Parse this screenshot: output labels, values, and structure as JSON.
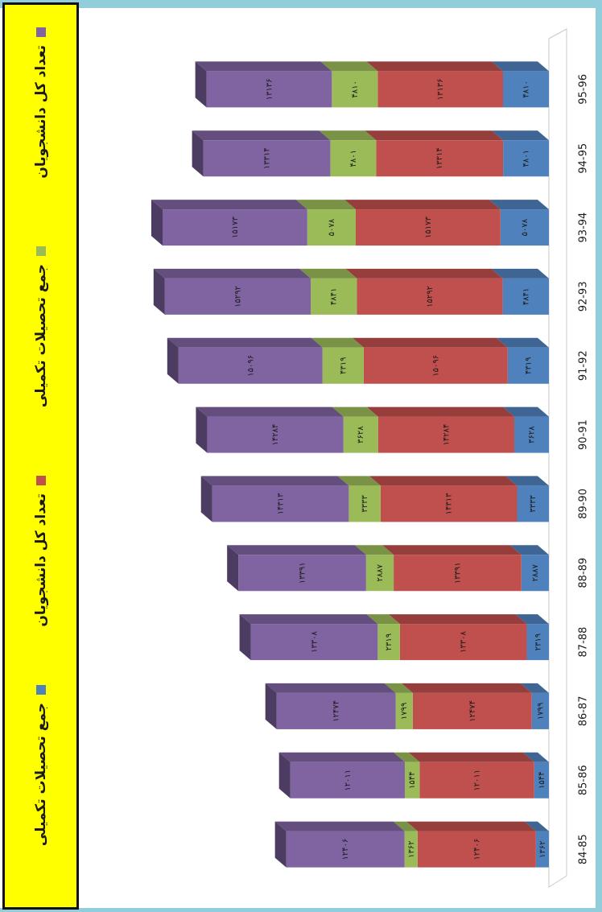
{
  "legend": {
    "items": [
      {
        "label": "جمع تحصیلات تکمیلی",
        "color": "#4f81bd"
      },
      {
        "label": "تعداد کل دانشجویان",
        "color": "#c0504d"
      },
      {
        "label": "جمع تحصیلات تکمیلی",
        "color": "#9bbb59"
      },
      {
        "label": "تعداد کل دانشجویان",
        "color": "#8064a2"
      }
    ]
  },
  "chart_data": {
    "type": "bar",
    "stacked": true,
    "three_d": true,
    "categories": [
      "84-85",
      "85-86",
      "86-87",
      "87-88",
      "88-89",
      "89-90",
      "90-91",
      "91-92",
      "92-93",
      "93-94",
      "94-95",
      "95-96"
    ],
    "series": [
      {
        "name": "جمع تحصیلات تکمیلی",
        "color": "#4f81bd",
        "values": [
          1362,
          1544,
          1799,
          2319,
          2887,
          3333,
          3628,
          4319,
          4841,
          5078,
          4801,
          4810
        ],
        "labels": [
          "۱۳۶۲",
          "۱۵۴۴",
          "۱۷۹۹",
          "۲۳۱۹",
          "۲۸۸۷",
          "۳۳۳۳",
          "۳۶۲۸",
          "۴۳۱۹",
          "۴۸۴۱",
          "۵۰۷۸",
          "۴۸۰۱",
          "۴۸۱۰"
        ]
      },
      {
        "name": "تعداد کل دانشجویان",
        "color": "#c0504d",
        "values": [
          12406,
          12011,
          12474,
          13308,
          13391,
          14313,
          14284,
          15096,
          15292,
          15173,
          13314,
          13136
        ],
        "labels": [
          "۱۲۴۰۶",
          "۱۲۰۱۱",
          "۱۲۴۷۴",
          "۱۳۳۰۸",
          "۱۳۳۹۱",
          "۱۴۳۱۳",
          "۱۴۲۸۴",
          "۱۵۰۹۶",
          "۱۵۲۹۲",
          "۱۵۱۷۳",
          "۱۳۳۱۴",
          "۱۳۱۳۶"
        ]
      },
      {
        "name": "جمع تحصیلات تکمیلی",
        "color": "#9bbb59",
        "values": [
          1362,
          1544,
          1799,
          2319,
          2887,
          3333,
          3628,
          4319,
          4841,
          5078,
          4801,
          4810
        ],
        "labels": [
          "۱۳۶۲",
          "۱۵۴۴",
          "۱۷۹۹",
          "۲۳۱۹",
          "۲۸۸۷",
          "۳۳۳۳",
          "۳۶۲۸",
          "۴۳۱۹",
          "۴۸۴۱",
          "۵۰۷۸",
          "۴۸۰۱",
          "۴۸۱۰"
        ]
      },
      {
        "name": "تعداد کل دانشجویان",
        "color": "#8064a2",
        "values": [
          12406,
          12011,
          12474,
          13308,
          13391,
          14313,
          14284,
          15096,
          15292,
          15173,
          13314,
          13136
        ],
        "labels": [
          "۱۲۴۰۶",
          "۱۲۰۱۱",
          "۱۲۴۷۴",
          "۱۳۳۰۸",
          "۱۳۳۹۱",
          "۱۴۳۱۳",
          "۱۴۲۸۴",
          "۱۵۰۹۶",
          "۱۵۲۹۲",
          "۱۵۱۷۳",
          "۱۳۳۱۴",
          "۱۳۱۳۶"
        ]
      }
    ],
    "legend_position": "left",
    "grid": false
  }
}
